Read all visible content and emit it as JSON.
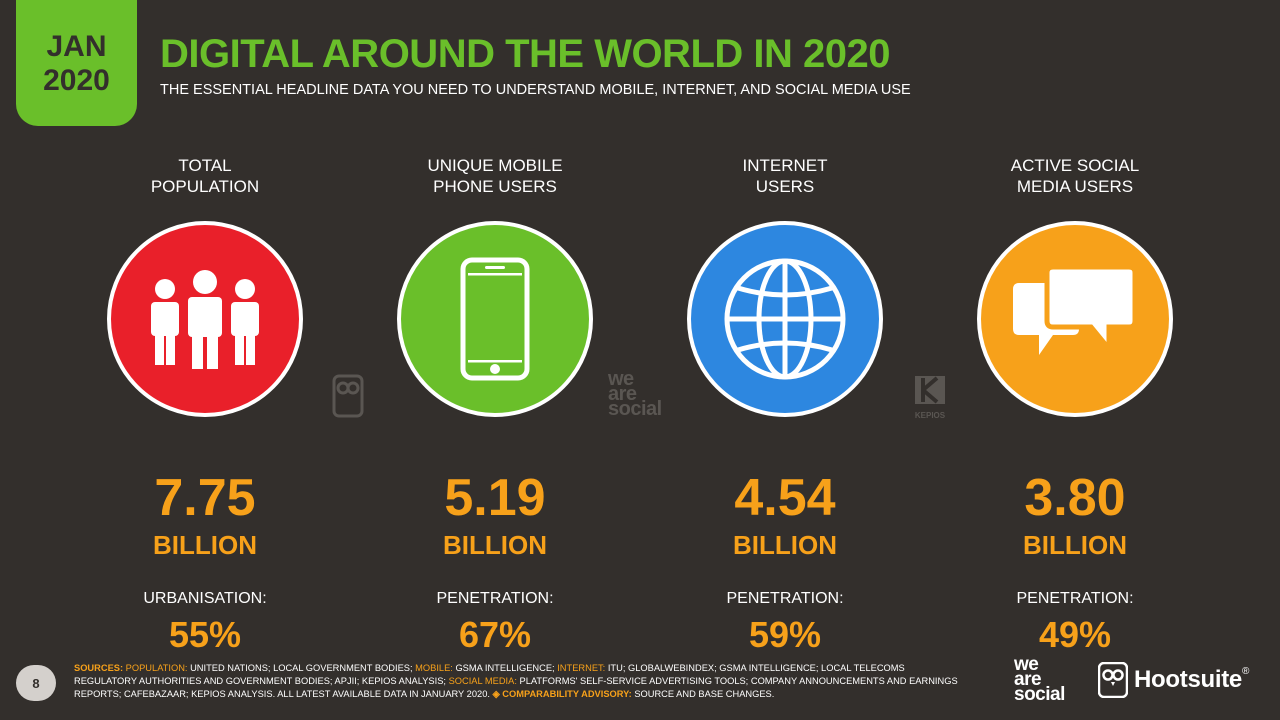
{
  "badge": {
    "month": "JAN",
    "year": "2020"
  },
  "title": "DIGITAL AROUND THE WORLD IN 2020",
  "subtitle": "THE ESSENTIAL HEADLINE DATA YOU NEED TO UNDERSTAND MOBILE, INTERNET, AND SOCIAL MEDIA USE",
  "colors": {
    "accent_green": "#6abf2a",
    "accent_orange": "#f7a11a",
    "background": "#332f2c",
    "red": "#e9202a",
    "green": "#6abf2a",
    "blue": "#2d87e0",
    "orange": "#f7a11a"
  },
  "stats": [
    {
      "label_line1": "TOTAL",
      "label_line2": "POPULATION",
      "icon": "people-icon",
      "color": "#e9202a",
      "value": "7.75",
      "unit": "BILLION",
      "sub_label": "URBANISATION:",
      "pct": "55%"
    },
    {
      "label_line1": "UNIQUE MOBILE",
      "label_line2": "PHONE USERS",
      "icon": "mobile-phone-icon",
      "color": "#6abf2a",
      "value": "5.19",
      "unit": "BILLION",
      "sub_label": "PENETRATION:",
      "pct": "67%"
    },
    {
      "label_line1": "INTERNET",
      "label_line2": "USERS",
      "icon": "globe-icon",
      "color": "#2d87e0",
      "value": "4.54",
      "unit": "BILLION",
      "sub_label": "PENETRATION:",
      "pct": "59%"
    },
    {
      "label_line1": "ACTIVE SOCIAL",
      "label_line2": "MEDIA USERS",
      "icon": "chat-bubbles-icon",
      "color": "#f7a11a",
      "value": "3.80",
      "unit": "BILLION",
      "sub_label": "PENETRATION:",
      "pct": "49%"
    }
  ],
  "watermarks": {
    "was_line1": "we",
    "was_line2": "are",
    "was_line3": "social",
    "kepios": "KEPIOS"
  },
  "footer": {
    "page_number": "8",
    "sources_label": "SOURCES:",
    "population_label": "POPULATION:",
    "population_text": " UNITED NATIONS; LOCAL GOVERNMENT BODIES; ",
    "mobile_label": "MOBILE:",
    "mobile_text": " GSMA INTELLIGENCE; ",
    "internet_label": "INTERNET:",
    "internet_text": " ITU; GLOBALWEBINDEX; GSMA INTELLIGENCE; LOCAL TELECOMS REGULATORY AUTHORITIES AND GOVERNMENT BODIES; APJII; KEPIOS ANALYSIS; ",
    "social_label": "SOCIAL MEDIA:",
    "social_text": " PLATFORMS' SELF-SERVICE ADVERTISING TOOLS; COMPANY ANNOUNCEMENTS AND EARNINGS REPORTS; CAFEBAZAAR; KEPIOS ANALYSIS. ALL LATEST AVAILABLE DATA IN JANUARY 2020. ",
    "advisory_label": "◈ COMPARABILITY ADVISORY:",
    "advisory_text": " SOURCE AND BASE CHANGES.",
    "logo_was_1": "we",
    "logo_was_2": "are",
    "logo_was_3": "social",
    "logo_hootsuite": "Hootsuite"
  }
}
